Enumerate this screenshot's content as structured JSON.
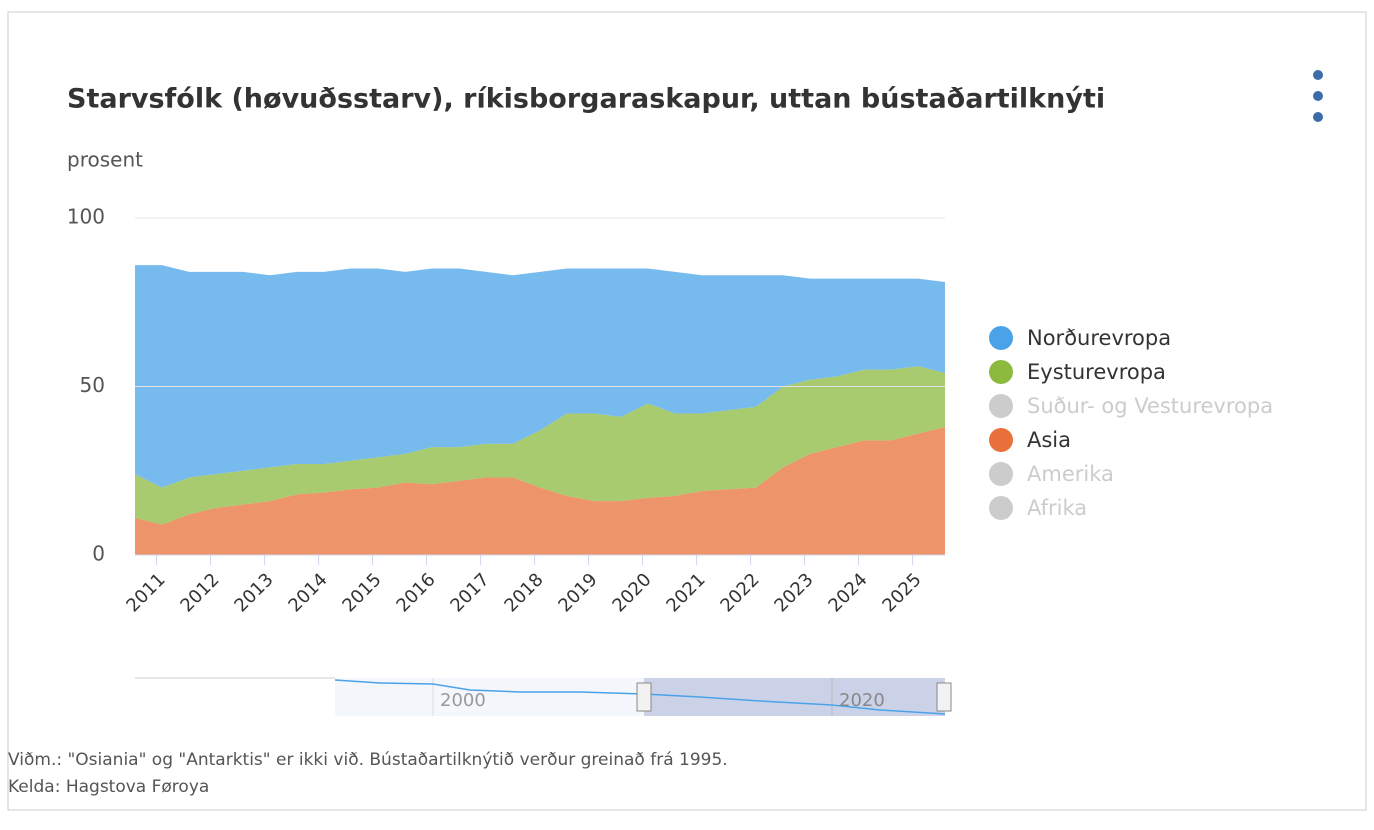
{
  "chart_data": {
    "type": "stacked_area",
    "title": "Starvsfólk (høvuðsstarv), ríkisborgaraskapur, uttan bústaðartilknýti",
    "y_axis_label": "prosent",
    "x": [
      2010.6,
      2011.1,
      2011.6,
      2012.1,
      2012.6,
      2013.1,
      2013.6,
      2014.1,
      2014.6,
      2015.1,
      2015.6,
      2016.1,
      2016.6,
      2017.1,
      2017.6,
      2018.1,
      2018.6,
      2019.1,
      2019.6,
      2020.1,
      2020.6,
      2021.1,
      2021.6,
      2022.1,
      2022.6,
      2023.1,
      2023.6,
      2024.1,
      2024.6,
      2025.1,
      2025.6
    ],
    "xlim": [
      2010.6,
      2025.6
    ],
    "xticks": [
      2011,
      2012,
      2013,
      2014,
      2015,
      2016,
      2017,
      2018,
      2019,
      2020,
      2021,
      2022,
      2023,
      2024,
      2025
    ],
    "ylim": [
      0,
      100
    ],
    "yticks": [
      0,
      50,
      100
    ],
    "grid": true,
    "legend_position": "right",
    "series": [
      {
        "name": "Asia",
        "color": "#e8703a",
        "values": [
          11,
          9,
          12,
          14,
          15,
          16,
          18,
          18.5,
          19.5,
          20,
          21.5,
          21,
          22,
          23,
          23,
          20,
          17.5,
          16,
          16,
          17,
          17.5,
          19,
          19.5,
          20,
          26,
          30,
          32,
          34,
          34,
          36,
          38
        ]
      },
      {
        "name": "Eysturevropa",
        "color": "#8cba3f",
        "values": [
          13,
          11,
          11,
          10,
          10,
          10,
          9,
          8.5,
          8.5,
          9,
          8.5,
          11,
          10,
          10,
          10,
          17,
          24.5,
          26,
          25,
          28,
          24.5,
          23,
          23.5,
          24,
          24,
          22,
          21,
          21,
          21,
          20,
          16
        ]
      },
      {
        "name": "Norðurevropa",
        "color": "#4aa3e8",
        "values": [
          62,
          66,
          61,
          60,
          59,
          57,
          57,
          57,
          57,
          56,
          54,
          53,
          53,
          51,
          50,
          47,
          43,
          43,
          44,
          40,
          42,
          41,
          40,
          39,
          33,
          30,
          29,
          27,
          27,
          26,
          27
        ]
      }
    ],
    "legend_order": [
      "Norðurevropa",
      "Eysturevropa",
      "Suður- og Vesturevropa",
      "Asia",
      "Amerika",
      "Afrika"
    ],
    "hidden_series": [
      "Suður- og Vesturevropa",
      "Amerika",
      "Afrika"
    ],
    "navigator_ticks": [
      "2000",
      "2020"
    ],
    "note": "Viðm.: \"Osiania\" og \"Antarktis\" er ikki við. Bústaðartilknýtið verður greinað frá 1995.",
    "source": "Kelda: Hagstova Føroya"
  }
}
